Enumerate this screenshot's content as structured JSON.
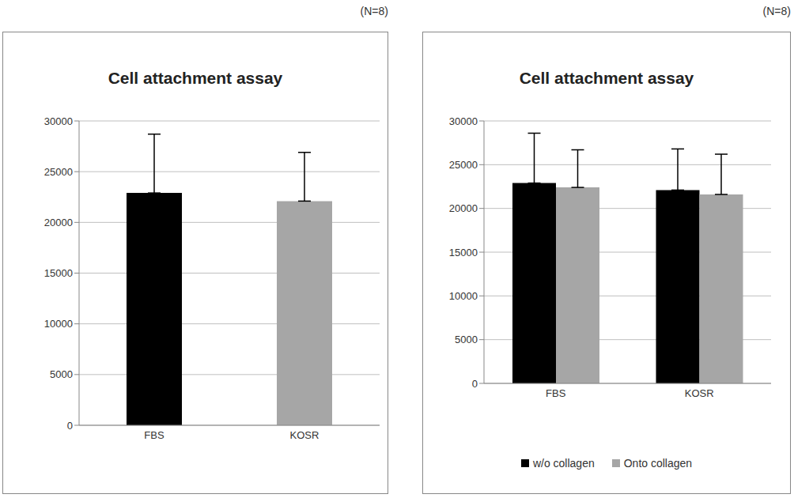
{
  "chart_data": [
    {
      "type": "bar",
      "title": "Cell attachment assay",
      "annotation": "(N=8)",
      "categories": [
        "FBS",
        "KOSR"
      ],
      "values": [
        22900,
        22100
      ],
      "errors": [
        5800,
        4800
      ],
      "colors": [
        "#000000",
        "#a6a6a6"
      ],
      "ylim": [
        0,
        30000
      ],
      "yticks": [
        0,
        5000,
        10000,
        15000,
        20000,
        25000,
        30000
      ],
      "grid": true
    },
    {
      "type": "bar",
      "title": "Cell attachment assay",
      "annotation": "(N=8)",
      "categories": [
        "FBS",
        "KOSR"
      ],
      "series": [
        {
          "name": "w/o collagen",
          "color": "#000000",
          "values": [
            22900,
            22100
          ],
          "errors": [
            5700,
            4700
          ]
        },
        {
          "name": "Onto collagen",
          "color": "#a6a6a6",
          "values": [
            22400,
            21600
          ],
          "errors": [
            4300,
            4600
          ]
        }
      ],
      "ylim": [
        0,
        30000
      ],
      "yticks": [
        0,
        5000,
        10000,
        15000,
        20000,
        25000,
        30000
      ],
      "grid": true,
      "legend": "bottom"
    }
  ]
}
